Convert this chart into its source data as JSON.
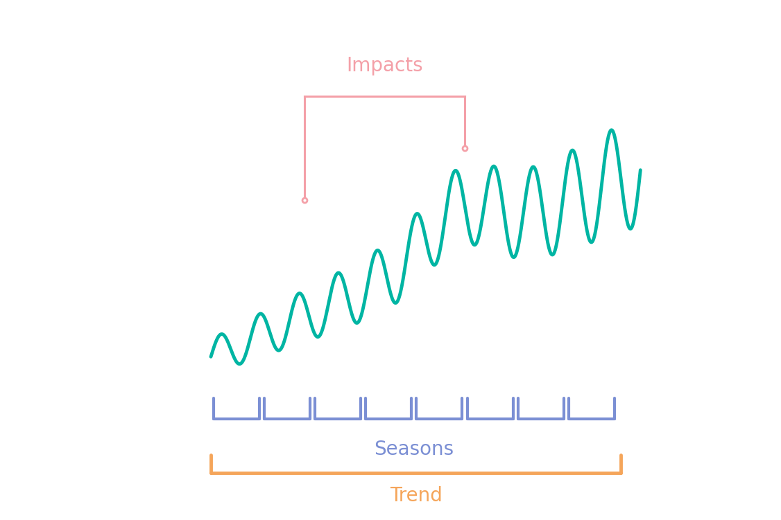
{
  "bg_color": "#ffffff",
  "teal_color": "#00b5a3",
  "pink_color": "#f4a0a8",
  "blue_color": "#7b8fd4",
  "orange_color": "#f5a55a",
  "pink_text_color": "#f4a0a8",
  "blue_text_color": "#7b8fd4",
  "orange_text_color": "#f5a55a",
  "impacts_label": "Impacts",
  "seasons_label": "Seasons",
  "trend_label": "Trend",
  "line_width": 3.5,
  "bracket_lw": 2.5,
  "n_seasons": 8
}
